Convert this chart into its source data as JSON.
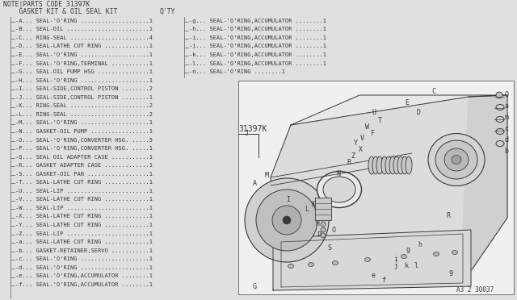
{
  "title_note": "NOTE|PARTS CODE 31397K",
  "title_kit": "    GASKET KIT & OIL SEAL KIT",
  "title_qty": "Q'TY",
  "bg_color": "#e0e0e0",
  "text_color": "#383838",
  "border_color": "#707070",
  "parts_left": [
    [
      "A",
      "SEAL-'O'RING",
      "1"
    ],
    [
      "B",
      "SEAL-OIL",
      "1"
    ],
    [
      "C",
      "RING-SEAL",
      "4"
    ],
    [
      "D",
      "SEAL-LATHE CUT RING",
      "1"
    ],
    [
      "E",
      "SEAL-'O'RING",
      "1"
    ],
    [
      "F",
      "SEAL-'O'RING,TERMINAL",
      "1"
    ],
    [
      "G",
      "SEAL-OIL PUMP HSG",
      "1"
    ],
    [
      "H",
      "SEAL-'O'RING",
      "1"
    ],
    [
      "I",
      "SEAL-SIDE,CONTROL PISTON",
      "2"
    ],
    [
      "J",
      "SEAL-SIDE,CONTROL PISTON",
      "1"
    ],
    [
      "K",
      "RING-SEAL",
      "2"
    ],
    [
      "L",
      "RING-SEAL",
      "2"
    ],
    [
      "M",
      "SEAL-'O'RING",
      "1"
    ],
    [
      "N",
      "GASKET-OIL PUMP",
      "1"
    ],
    [
      "O",
      "SEAL-'O'RING,CONVERTER HSG.",
      "5"
    ],
    [
      "P",
      "SEAL-'O'RING,CONVERTER HSG.",
      "1"
    ],
    [
      "Q",
      "SEAL OIL ADAPTER CASE",
      "1"
    ],
    [
      "R",
      "GASKET ADAPTER CASE",
      "1"
    ],
    [
      "S",
      "GASKET-OIL PAN",
      "1"
    ],
    [
      "T",
      "SEAL-LATHE CUT RING",
      "1"
    ],
    [
      "U",
      "SEAL-LIP",
      "1"
    ],
    [
      "V",
      "SEAL-LATHE CUT RING",
      "1"
    ],
    [
      "W",
      "SEAL-LIP",
      "1"
    ],
    [
      "X",
      "SEAL-LATHE CUT RING",
      "1"
    ],
    [
      "Y",
      "SEAL-LATHE CUT RING",
      "1"
    ],
    [
      "Z",
      "SEAL-LIP",
      "1"
    ],
    [
      "a",
      "SEAL-LATHE CUT RING",
      "1"
    ],
    [
      "b",
      "GASKET-RETAINER,SERVO",
      "1"
    ],
    [
      "c",
      "SEAL-'O'RING",
      "1"
    ],
    [
      "d",
      "SEAL-'O'RING",
      "1"
    ],
    [
      "e",
      "SEAL-'O'RING,ACCUMULATOR",
      "1"
    ],
    [
      "f",
      "SEAL-'O'RING,ACCUMULATOR",
      "1"
    ]
  ],
  "parts_right": [
    [
      "g",
      "SEAL-'O'RING,ACCUMULATOR",
      "1"
    ],
    [
      "h",
      "SEAL-'O'RING,ACCUMULATOR",
      "1"
    ],
    [
      "i",
      "SEAL-'O'RING,ACCUMULATOR",
      "1"
    ],
    [
      "j",
      "SEAL-'O'RING,ACCUMULATOR",
      "1"
    ],
    [
      "k",
      "SEAL-'O'RING,ACCUMULATOR",
      "1"
    ],
    [
      "l",
      "SEAL-'O'RING,ACCUMULATOR",
      "1"
    ],
    [
      "n",
      "SEAL-'O'RING",
      "1"
    ]
  ],
  "part_code": "31397K",
  "diagram_label": "A3 2 30037"
}
